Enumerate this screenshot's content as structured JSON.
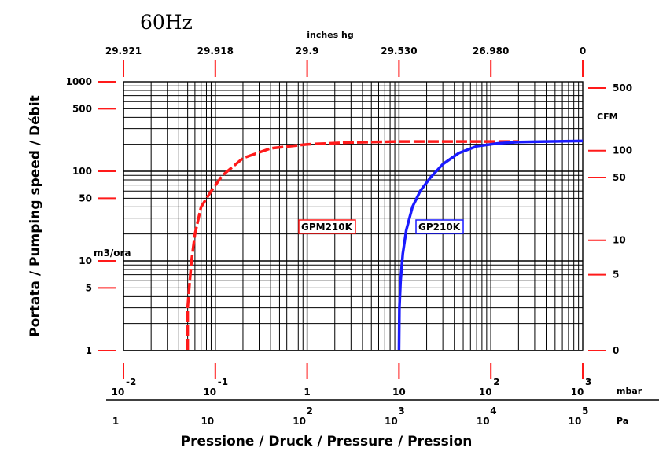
{
  "chart_data": {
    "type": "line",
    "title": "60Hz",
    "xlabel": "Pressione / Druck / Pressure / Pression",
    "ylabel": "Portata / Pumping speed / Débit",
    "x_scale": "log",
    "y_scale": "log",
    "xlim": [
      0.01,
      1000
    ],
    "ylim": [
      1,
      1000
    ],
    "grid": true,
    "x_unit_mbar": "mbar",
    "x_unit_pa": "Pa",
    "y_unit_left": "m3/ora",
    "y_unit_right": "CFM",
    "top_axis_label": "inches hg",
    "ticks_mbar": [
      {
        "v": 0.01,
        "base": "10",
        "exp": "-2"
      },
      {
        "v": 0.1,
        "base": "10",
        "exp": "-1"
      },
      {
        "v": 1,
        "base": "1",
        "exp": ""
      },
      {
        "v": 10,
        "base": "10",
        "exp": ""
      },
      {
        "v": 100,
        "base": "10",
        "exp": "2"
      },
      {
        "v": 1000,
        "base": "10",
        "exp": "3"
      }
    ],
    "ticks_pa": [
      {
        "v": 0.01,
        "base": "1",
        "exp": ""
      },
      {
        "v": 0.1,
        "base": "10",
        "exp": ""
      },
      {
        "v": 1,
        "base": "10",
        "exp": "2"
      },
      {
        "v": 10,
        "base": "10",
        "exp": "3"
      },
      {
        "v": 100,
        "base": "10",
        "exp": "4"
      },
      {
        "v": 1000,
        "base": "10",
        "exp": "5"
      }
    ],
    "ticks_inches": [
      {
        "v": 0.01,
        "label": "29.921"
      },
      {
        "v": 0.1,
        "label": "29.918"
      },
      {
        "v": 1,
        "label": "29.9"
      },
      {
        "v": 10,
        "label": "29.530"
      },
      {
        "v": 100,
        "label": "26.980"
      },
      {
        "v": 1000,
        "label": "0"
      }
    ],
    "ticks_left": [
      {
        "v": 1,
        "label": "1"
      },
      {
        "v": 5,
        "label": "5"
      },
      {
        "v": 10,
        "label": "10"
      },
      {
        "v": 50,
        "label": "50"
      },
      {
        "v": 100,
        "label": "100"
      },
      {
        "v": 500,
        "label": "500"
      },
      {
        "v": 1000,
        "label": "1000"
      }
    ],
    "ticks_right": [
      {
        "v": 1,
        "label": "0"
      },
      {
        "v": 7,
        "label": "5"
      },
      {
        "v": 17,
        "label": "10"
      },
      {
        "v": 85,
        "label": "50"
      },
      {
        "v": 170,
        "label": "100"
      },
      {
        "v": 850,
        "label": "500"
      }
    ],
    "series": [
      {
        "name": "GPM210K",
        "color": "#ff1a1a",
        "dash": true,
        "x": [
          0.05,
          0.05,
          0.052,
          0.055,
          0.06,
          0.07,
          0.09,
          0.12,
          0.2,
          0.4,
          1,
          3,
          10,
          30,
          100,
          200
        ],
        "y": [
          1,
          3,
          5,
          10,
          20,
          40,
          60,
          90,
          140,
          180,
          200,
          210,
          215,
          215,
          215,
          215
        ]
      },
      {
        "name": "GP210K",
        "color": "#1a1aff",
        "dash": false,
        "x": [
          10,
          10.1,
          10.4,
          11,
          12,
          14,
          17,
          22,
          30,
          45,
          70,
          120,
          200,
          400,
          1000
        ],
        "y": [
          1,
          3,
          6,
          12,
          22,
          40,
          60,
          85,
          120,
          160,
          190,
          205,
          212,
          215,
          218
        ]
      }
    ]
  }
}
